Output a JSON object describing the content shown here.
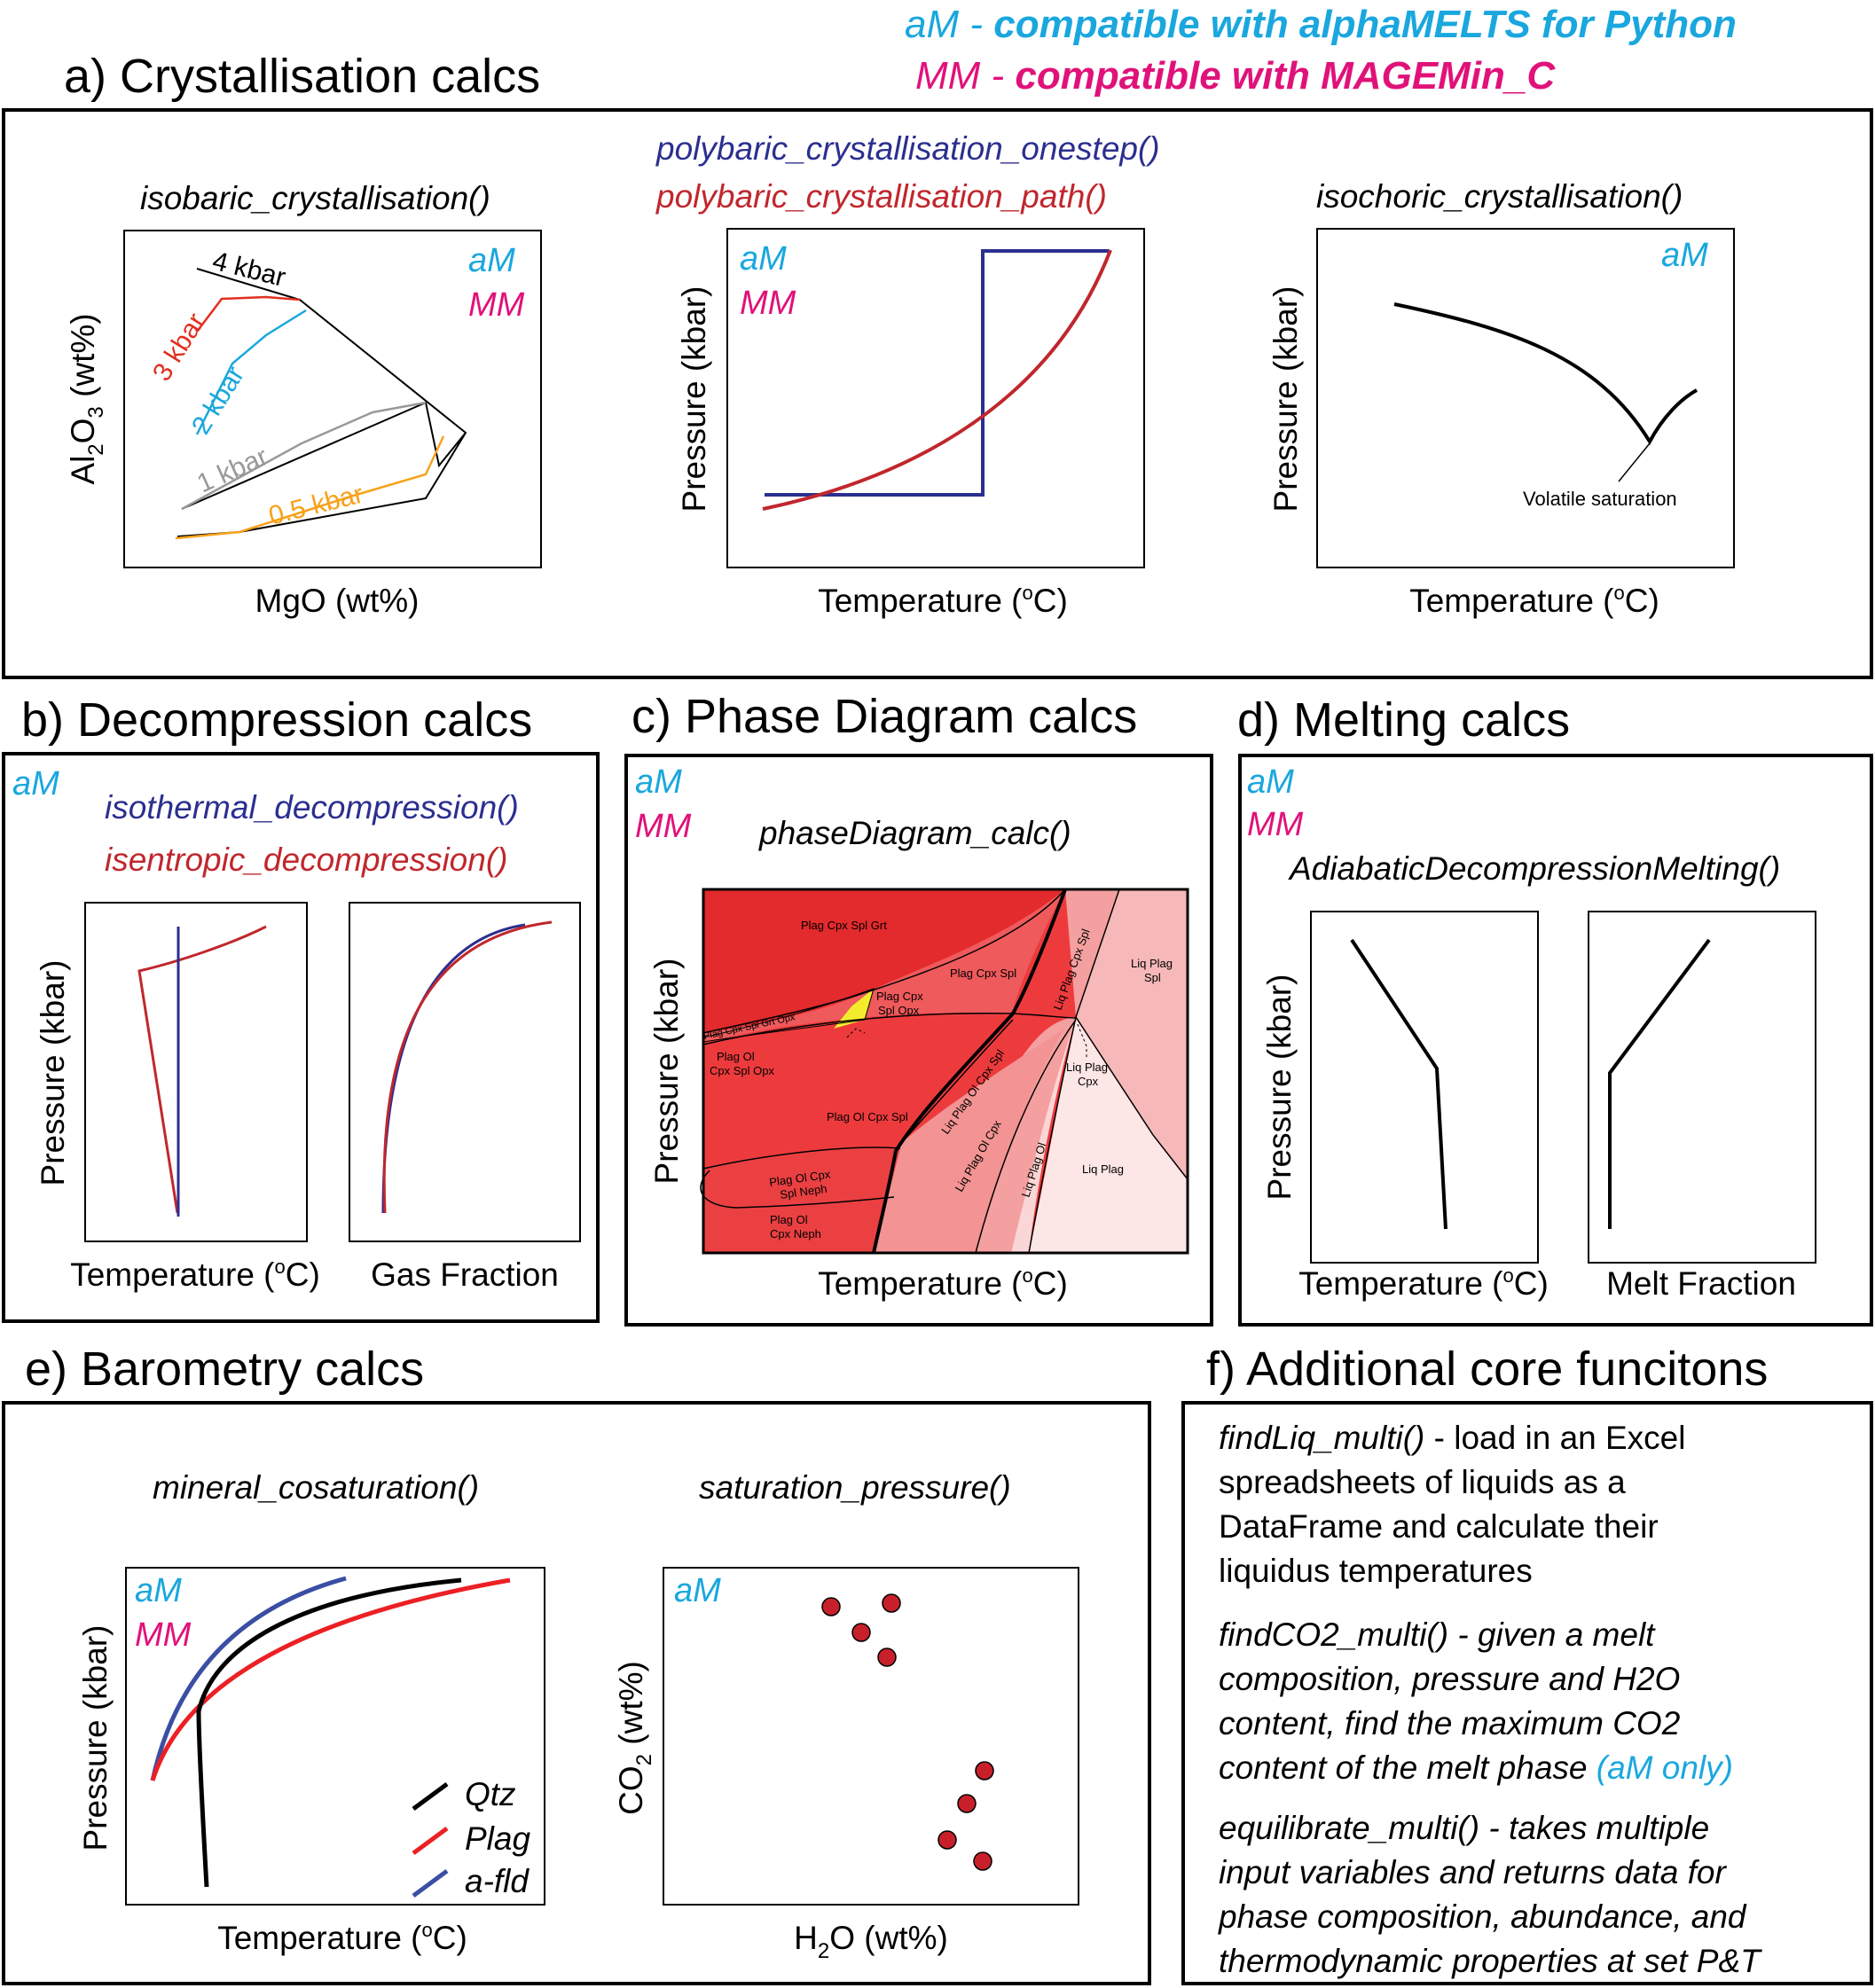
{
  "legend": {
    "am_line_abbr": "aM",
    "am_line_sep": " - ",
    "am_line_text": "compatible with alphaMELTS for Python",
    "mm_line_abbr": "MM",
    "mm_line_sep": " - ",
    "mm_line_text": "compatible with MAGEMin_C"
  },
  "colors": {
    "aM": "#1aa7de",
    "MM": "#e0127a",
    "blue_fn": "#2b2f8f",
    "red_fn": "#c0272d",
    "frame": "#000000"
  },
  "sections": {
    "a": {
      "title": "a) Crystallisation calcs",
      "panel1": {
        "function": "isobaric_crystallisation()",
        "tag_am": "aM",
        "tag_mm": "MM",
        "xlabel": "MgO (wt%)",
        "ylabel_pre": "Al",
        "ylabel_sub1": "2",
        "ylabel_mid": "O",
        "ylabel_sub2": "3",
        "ylabel_post": " (wt%)",
        "curves": [
          {
            "label": "4 kbar",
            "color": "#000000"
          },
          {
            "label": "3 kbar",
            "color": "#e03020"
          },
          {
            "label": "2 kbar",
            "color": "#1aa7de"
          },
          {
            "label": "1 kbar",
            "color": "#999999"
          },
          {
            "label": "0.5 kbar",
            "color": "#f7a21b"
          }
        ]
      },
      "panel2": {
        "function_onestep": "polybaric_crystallisation_onestep()",
        "function_path": "polybaric_crystallisation_path()",
        "tag_am": "aM",
        "tag_mm": "MM",
        "xlabel_pre": "Temperature (",
        "xlabel_sup": "o",
        "xlabel_post": "C)",
        "ylabel": "Pressure (kbar)"
      },
      "panel3": {
        "function": "isochoric_crystallisation()",
        "tag_am": "aM",
        "annotation": "Volatile saturation",
        "xlabel_pre": "Temperature (",
        "xlabel_sup": "o",
        "xlabel_post": "C)",
        "ylabel": "Pressure (kbar)"
      }
    },
    "b": {
      "title": "b) Decompression calcs",
      "tag_am": "aM",
      "function_isothermal": "isothermal_decompression()",
      "function_isentropic": "isentropic_decompression()",
      "ylabel": "Pressure (kbar)",
      "xlabel1_pre": "Temperature (",
      "xlabel1_sup": "o",
      "xlabel1_post": "C)",
      "xlabel2": "Gas Fraction"
    },
    "c": {
      "title": "c) Phase Diagram calcs",
      "tag_am": "aM",
      "tag_mm": "MM",
      "function": "phaseDiagram_calc()",
      "ylabel": "Pressure (kbar)",
      "xlabel_pre": "Temperature (",
      "xlabel_sup": "o",
      "xlabel_post": "C)",
      "fields": {
        "plag_cpx_spl_grt": "Plag Cpx Spl Grt",
        "plag_cpx_spl": "Plag Cpx Spl",
        "liq_plag_spl_1": "Liq Plag",
        "liq_plag_spl_2": "Spl",
        "plag_cpx_spl_opx_1": "Plag Cpx",
        "plag_cpx_spl_opx_2": "Spl Opx",
        "plag_cpx_spl_grt_opx": "Plag Cpx Spl Grt Opx",
        "plag_ol_cpx_spl_opx_1": "Plag Ol",
        "plag_ol_cpx_spl_opx_2": "Cpx Spl Opx",
        "liq_plag_cpx_spl": "Liq Plag Cpx Spl",
        "liq_plag_cpx_1": "Liq Plag",
        "liq_plag_cpx_2": "Cpx",
        "plag_ol_cpx_spl": "Plag Ol Cpx Spl",
        "liq_plag_ol_cpx_spl": "Liq Plag Ol Cpx Spl",
        "liq_plag_ol_cpx": "Liq Plag Ol Cpx",
        "liq_plag_ol": "Liq Plag Ol",
        "liq_plag": "Liq Plag",
        "plag_ol_cpx_spl_neph_1": "Plag Ol Cpx",
        "plag_ol_cpx_spl_neph_2": "Spl Neph",
        "plag_ol_cpx_neph_1": "Plag Ol",
        "plag_ol_cpx_neph_2": "Cpx Neph"
      }
    },
    "d": {
      "title": "d) Melting calcs",
      "tag_am": "aM",
      "tag_mm": "MM",
      "function": "AdiabaticDecompressionMelting()",
      "ylabel": "Pressure (kbar)",
      "xlabel1_pre": "Temperature (",
      "xlabel1_sup": "o",
      "xlabel1_post": "C)",
      "xlabel2": "Melt Fraction"
    },
    "e": {
      "title": "e) Barometry calcs",
      "panel1": {
        "function": "mineral_cosaturation()",
        "tag_am": "aM",
        "tag_mm": "MM",
        "ylabel": "Pressure (kbar)",
        "xlabel_pre": "Temperature (",
        "xlabel_sup": "o",
        "xlabel_post": "C)",
        "legend": [
          {
            "label": "Qtz",
            "color": "#000000"
          },
          {
            "label": "Plag",
            "color": "#ec2024"
          },
          {
            "label": "a-fld",
            "color": "#3a4fa3"
          }
        ]
      },
      "panel2": {
        "function": "saturation_pressure()",
        "tag_am": "aM",
        "ylabel_pre": "CO",
        "ylabel_sub": "2",
        "ylabel_post": " (wt%)",
        "xlabel_pre": "H",
        "xlabel_sub": "2",
        "xlabel_post": "O (wt%)",
        "point_color": "#c8202a"
      }
    },
    "f": {
      "title": "f) Additional core funcitons",
      "para1_fn": "findLiq_multi()",
      "para1_l1_rest": " - load in an Excel",
      "para1_l2": "spreadsheets of liquids as a",
      "para1_l3": "DataFrame and calculate their",
      "para1_l4": "liquidus temperatures",
      "para2_fn": "findCO2_multi()",
      "para2_l1_rest": " - given a melt",
      "para2_l2": "composition, pressure and H2O",
      "para2_l3": "content, find the maximum CO2",
      "para2_l4_pre": "content of the melt phase ",
      "para2_l4_tag": "(aM only)",
      "para3_fn": "equilibrate_multi()",
      "para3_l1_rest": " -  takes multiple",
      "para3_l2": "input variables and returns data for",
      "para3_l3": "phase composition, abundance, and",
      "para3_l4": "thermodynamic properties at set P&T"
    }
  }
}
